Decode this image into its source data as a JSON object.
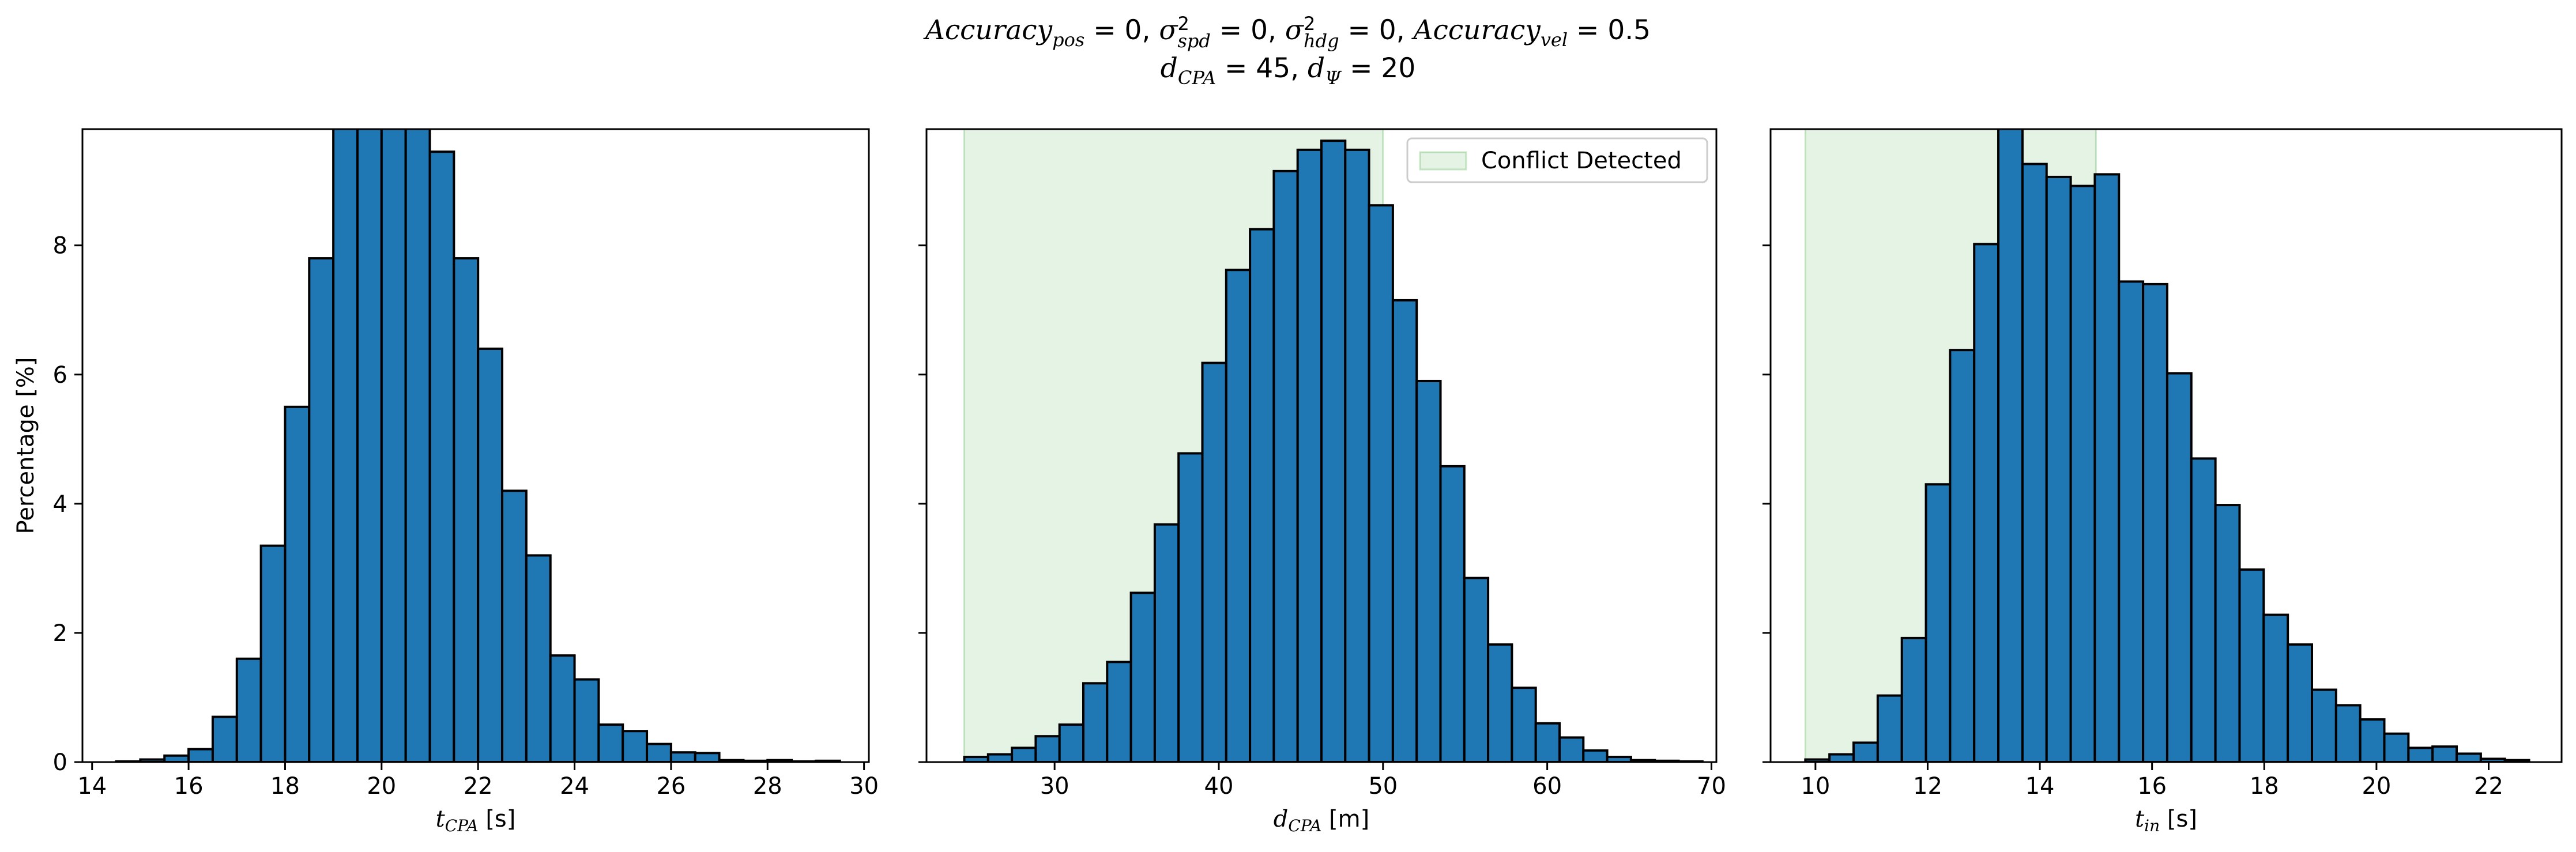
{
  "suptitle": {
    "line1": [
      {
        "base": "Accuracy",
        "sub": "pos",
        "eq": " = 0, "
      },
      {
        "base": "σ",
        "sup": "2",
        "sub": "spd",
        "eq": " = 0, "
      },
      {
        "base": "σ",
        "sup": "2",
        "sub": "hdg",
        "eq": " = 0, "
      },
      {
        "base": "Accuracy",
        "sub": "vel",
        "eq": " = 0.5"
      }
    ],
    "line2": [
      {
        "base": "d",
        "sub": "CPA",
        "eq": " = 45, "
      },
      {
        "base": "d",
        "sub": "Ψ",
        "eq": " = 20"
      }
    ]
  },
  "colors": {
    "bar_fill": "#1f77b4",
    "bar_edge": "#000000",
    "conflict_shade": "#2ca02c"
  },
  "chart_data": [
    {
      "type": "bar",
      "ylabel": "Percentage [%]",
      "xlabel": {
        "base": "t",
        "sub": "CPA",
        "unit": " [s]"
      },
      "xlim": [
        13.8,
        30.1
      ],
      "ylim": [
        0,
        9.8
      ],
      "xticks": [
        14,
        16,
        18,
        20,
        22,
        24,
        26,
        28,
        30
      ],
      "yticks": [
        0,
        2,
        4,
        6,
        8
      ],
      "bin_start": 14.5,
      "bin_width": 0.5,
      "values": [
        0.01,
        0.04,
        0.1,
        0.2,
        0.7,
        1.6,
        3.35,
        5.5,
        7.8,
        9.9,
        9.9,
        9.9,
        9.9,
        9.45,
        7.8,
        6.4,
        4.2,
        3.2,
        1.65,
        1.28,
        0.58,
        0.48,
        0.28,
        0.15,
        0.14,
        0.03,
        0.02,
        0.03,
        0.01,
        0.02
      ],
      "legend": null
    },
    {
      "type": "bar",
      "ylabel": "",
      "xlabel": {
        "base": "d",
        "sub": "CPA",
        "unit": " [m]"
      },
      "xlim": [
        22.2,
        70.3
      ],
      "ylim": [
        0,
        9.8
      ],
      "xticks": [
        30,
        40,
        50,
        60,
        70
      ],
      "yticks": [
        0,
        2,
        4,
        6,
        8
      ],
      "bin_start": 24.5,
      "bin_width": 1.45,
      "values": [
        0.08,
        0.12,
        0.22,
        0.4,
        0.58,
        1.22,
        1.55,
        2.62,
        3.68,
        4.78,
        6.18,
        7.62,
        8.25,
        9.15,
        9.48,
        9.62,
        9.48,
        8.62,
        7.15,
        5.9,
        4.58,
        2.85,
        1.82,
        1.15,
        0.6,
        0.38,
        0.18,
        0.08,
        0.03,
        0.02,
        0.01
      ],
      "shade": [
        24.5,
        50
      ],
      "legend": {
        "label": "Conflict Detected",
        "placement": "upper right"
      }
    },
    {
      "type": "bar",
      "ylabel": "",
      "xlabel": {
        "base": "t",
        "sub": "in",
        "unit": " [s]"
      },
      "xlim": [
        9.2,
        23.3
      ],
      "ylim": [
        0,
        9.8
      ],
      "xticks": [
        10,
        12,
        14,
        16,
        18,
        20,
        22
      ],
      "yticks": [
        0,
        2,
        4,
        6,
        8
      ],
      "bin_start": 9.82,
      "bin_width": 0.43,
      "values": [
        0.04,
        0.12,
        0.3,
        1.03,
        1.92,
        4.3,
        6.38,
        8.02,
        9.9,
        9.26,
        9.06,
        8.92,
        9.1,
        7.44,
        7.4,
        6.02,
        4.7,
        3.98,
        2.98,
        2.28,
        1.82,
        1.12,
        0.88,
        0.66,
        0.44,
        0.22,
        0.24,
        0.13,
        0.05,
        0.03
      ],
      "shade": [
        9.82,
        15.0
      ],
      "legend": null
    }
  ]
}
